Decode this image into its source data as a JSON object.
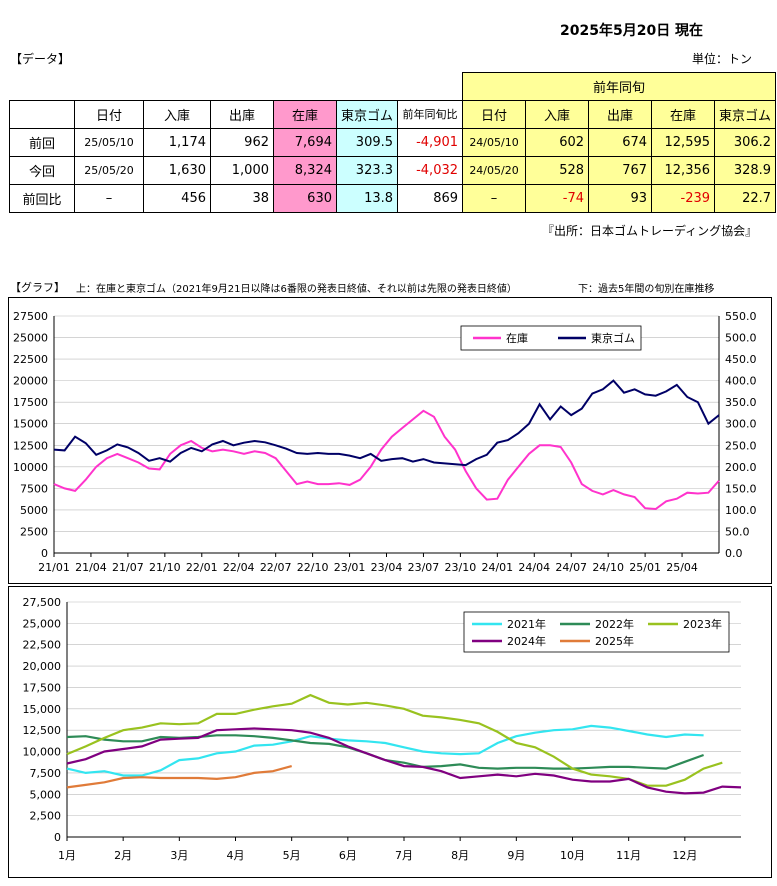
{
  "header": {
    "title": "2025年5月20日 現在",
    "data_label": "【データ】",
    "unit": "単位：トン",
    "source": "『出所：日本ゴムトレーディング協会』"
  },
  "table": {
    "prev_year_header": "前年同旬",
    "columns": [
      "",
      "日付",
      "入庫",
      "出庫",
      "在庫",
      "東京ゴム",
      "前年同旬比",
      "日付",
      "入庫",
      "出庫",
      "在庫",
      "東京ゴム"
    ],
    "rows": [
      {
        "label": "前回",
        "date": "25/05/10",
        "in": "1,174",
        "out": "962",
        "stock": "7,694",
        "tokyo": "309.5",
        "yoy": "-4,901",
        "py_date": "24/05/10",
        "py_in": "602",
        "py_out": "674",
        "py_stock": "12,595",
        "py_tokyo": "306.2"
      },
      {
        "label": "今回",
        "date": "25/05/20",
        "in": "1,630",
        "out": "1,000",
        "stock": "8,324",
        "tokyo": "323.3",
        "yoy": "-4,032",
        "py_date": "24/05/20",
        "py_in": "528",
        "py_out": "767",
        "py_stock": "12,356",
        "py_tokyo": "328.9"
      },
      {
        "label": "前回比",
        "date": "–",
        "in": "456",
        "out": "38",
        "stock": "630",
        "tokyo": "13.8",
        "yoy": "869",
        "py_date": "–",
        "py_in": "-74",
        "py_out": "93",
        "py_stock": "-239",
        "py_tokyo": "22.7"
      }
    ]
  },
  "graph": {
    "label": "【グラフ】",
    "upper_desc": "上：在庫と東京ゴム（2021年9月21日以降は6番限の発表日終値、それ以前は先限の発表日終値）",
    "lower_desc": "下：過去5年間の旬別在庫推移"
  },
  "colors": {
    "stock": "#ff33cc",
    "tokyo": "#000066",
    "y2021": "#33e5f0",
    "y2022": "#2e8b57",
    "y2023": "#99c21f",
    "y2024": "#800080",
    "y2025": "#e07b39"
  },
  "chart_data": [
    {
      "type": "line",
      "legend": [
        "在庫",
        "東京ゴム"
      ],
      "legend_position": "top-right",
      "x_ticks": [
        "21/01",
        "21/04",
        "21/07",
        "21/10",
        "22/01",
        "22/04",
        "22/07",
        "22/10",
        "23/01",
        "23/04",
        "23/07",
        "23/10",
        "24/01",
        "24/04",
        "24/07",
        "24/10",
        "25/01",
        "25/04"
      ],
      "ylim_left": [
        0,
        27500
      ],
      "yticks_left": [
        "0",
        "2500",
        "5000",
        "7500",
        "10000",
        "12500",
        "15000",
        "17500",
        "20000",
        "22500",
        "25000",
        "27500"
      ],
      "ylim_right": [
        0,
        550
      ],
      "yticks_right": [
        "0.0",
        "50.0",
        "100.0",
        "150.0",
        "200.0",
        "250.0",
        "300.0",
        "350.0",
        "400.0",
        "450.0",
        "500.0",
        "550.0"
      ],
      "series": [
        {
          "name": "在庫",
          "axis": "left",
          "values": [
            8000,
            7500,
            7200,
            8500,
            10000,
            11000,
            11500,
            11000,
            10500,
            9800,
            9700,
            11500,
            12500,
            13000,
            12200,
            11800,
            12000,
            11800,
            11500,
            11800,
            11600,
            11000,
            9500,
            8000,
            8300,
            8000,
            8000,
            8100,
            7900,
            8500,
            10000,
            12000,
            13500,
            14500,
            15500,
            16500,
            15800,
            13500,
            12000,
            9500,
            7500,
            6200,
            6300,
            8500,
            10000,
            11500,
            12500,
            12500,
            12300,
            10500,
            8000,
            7200,
            6800,
            7300,
            6800,
            6500,
            5200,
            5100,
            6000,
            6300,
            7000,
            6900,
            7000,
            8400
          ]
        },
        {
          "name": "東京ゴム",
          "axis": "right",
          "values": [
            240,
            238,
            270,
            255,
            228,
            238,
            252,
            245,
            232,
            214,
            220,
            212,
            232,
            244,
            236,
            252,
            260,
            250,
            256,
            260,
            257,
            250,
            242,
            232,
            230,
            232,
            230,
            230,
            226,
            220,
            230,
            214,
            218,
            220,
            212,
            218,
            210,
            208,
            206,
            204,
            218,
            228,
            256,
            262,
            278,
            300,
            345,
            310,
            340,
            320,
            335,
            370,
            380,
            400,
            372,
            380,
            368,
            365,
            375,
            390,
            362,
            350,
            300,
            320
          ]
        }
      ]
    },
    {
      "type": "line",
      "legend": [
        "2021年",
        "2022年",
        "2023年",
        "2024年",
        "2025年"
      ],
      "legend_position": "top-right",
      "x_ticks": [
        "1月",
        "2月",
        "3月",
        "4月",
        "5月",
        "6月",
        "7月",
        "8月",
        "9月",
        "10月",
        "11月",
        "12月"
      ],
      "ylim": [
        0,
        27500
      ],
      "yticks": [
        "0",
        "2,500",
        "5,000",
        "7,500",
        "10,000",
        "12,500",
        "15,000",
        "17,500",
        "20,000",
        "22,500",
        "25,000",
        "27,500"
      ],
      "series": [
        {
          "name": "2021年",
          "values": [
            8000,
            7500,
            7700,
            7200,
            7200,
            7800,
            9000,
            9200,
            9800,
            10000,
            10700,
            10800,
            11200,
            11800,
            11500,
            11300,
            11200,
            11000,
            10500,
            10000,
            9800,
            9700,
            9800,
            11000,
            11800,
            12200,
            12500,
            12600,
            13000,
            12800,
            12400,
            12000,
            11700,
            12000,
            11900
          ]
        },
        {
          "name": "2022年",
          "values": [
            11700,
            11800,
            11400,
            11200,
            11200,
            11700,
            11600,
            11700,
            11900,
            11900,
            11800,
            11600,
            11300,
            11000,
            10900,
            10500,
            9800,
            9000,
            8700,
            8200,
            8300,
            8500,
            8100,
            8000,
            8100,
            8100,
            8000,
            8000,
            8100,
            8200,
            8200,
            8100,
            8000,
            8800,
            9600
          ]
        },
        {
          "name": "2023年",
          "values": [
            9700,
            10600,
            11600,
            12500,
            12800,
            13300,
            13200,
            13300,
            14400,
            14400,
            14900,
            15300,
            15600,
            16600,
            15700,
            15500,
            15700,
            15400,
            15000,
            14200,
            14000,
            13700,
            13300,
            12300,
            11000,
            10500,
            9400,
            8000,
            7300,
            7100,
            6800,
            6000,
            6000,
            6700,
            8000,
            8700
          ]
        },
        {
          "name": "2024年",
          "values": [
            8600,
            9100,
            10000,
            10300,
            10600,
            11400,
            11500,
            11600,
            12500,
            12600,
            12700,
            12600,
            12500,
            12200,
            11600,
            10600,
            9800,
            9000,
            8300,
            8200,
            7700,
            6900,
            7100,
            7300,
            7100,
            7400,
            7200,
            6700,
            6500,
            6500,
            6800,
            5800,
            5300,
            5100,
            5200,
            5900,
            5800
          ]
        },
        {
          "name": "2025年",
          "values": [
            5800,
            6100,
            6400,
            6900,
            7000,
            6900,
            6900,
            6900,
            6800,
            7000,
            7500,
            7700,
            8300
          ]
        }
      ]
    }
  ]
}
